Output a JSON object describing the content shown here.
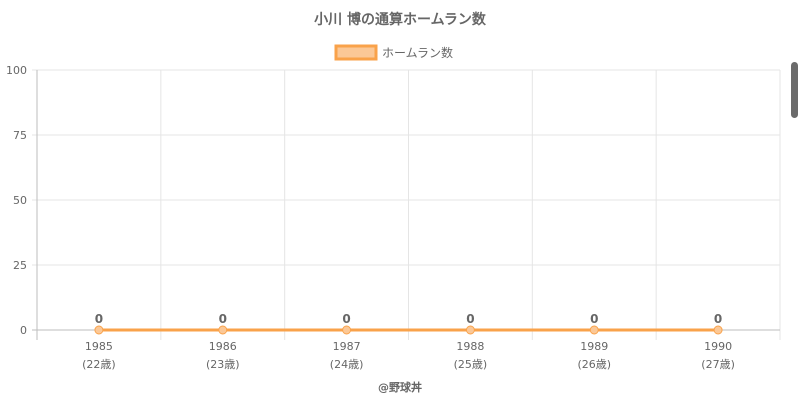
{
  "colors": {
    "line": "#f9a24a",
    "legend_fill": "#fbc897",
    "grid": "#e5e5e5",
    "axis": "#bdbdbd",
    "text": "#666666"
  },
  "chart_data": {
    "type": "line",
    "title": "小川 博の通算ホームラン数",
    "categories": [
      "1985",
      "1986",
      "1987",
      "1988",
      "1989",
      "1990"
    ],
    "sub_labels": [
      "(22歳)",
      "(23歳)",
      "(24歳)",
      "(25歳)",
      "(26歳)",
      "(27歳)"
    ],
    "series": [
      {
        "name": "ホームラン数",
        "values": [
          0,
          0,
          0,
          0,
          0,
          0
        ]
      }
    ],
    "ylim": [
      0,
      100
    ],
    "yticks": [
      0,
      25,
      50,
      75,
      100
    ],
    "grid": true,
    "legend": "top-center",
    "xlabel": "",
    "ylabel": "",
    "credit": "@野球丼"
  }
}
